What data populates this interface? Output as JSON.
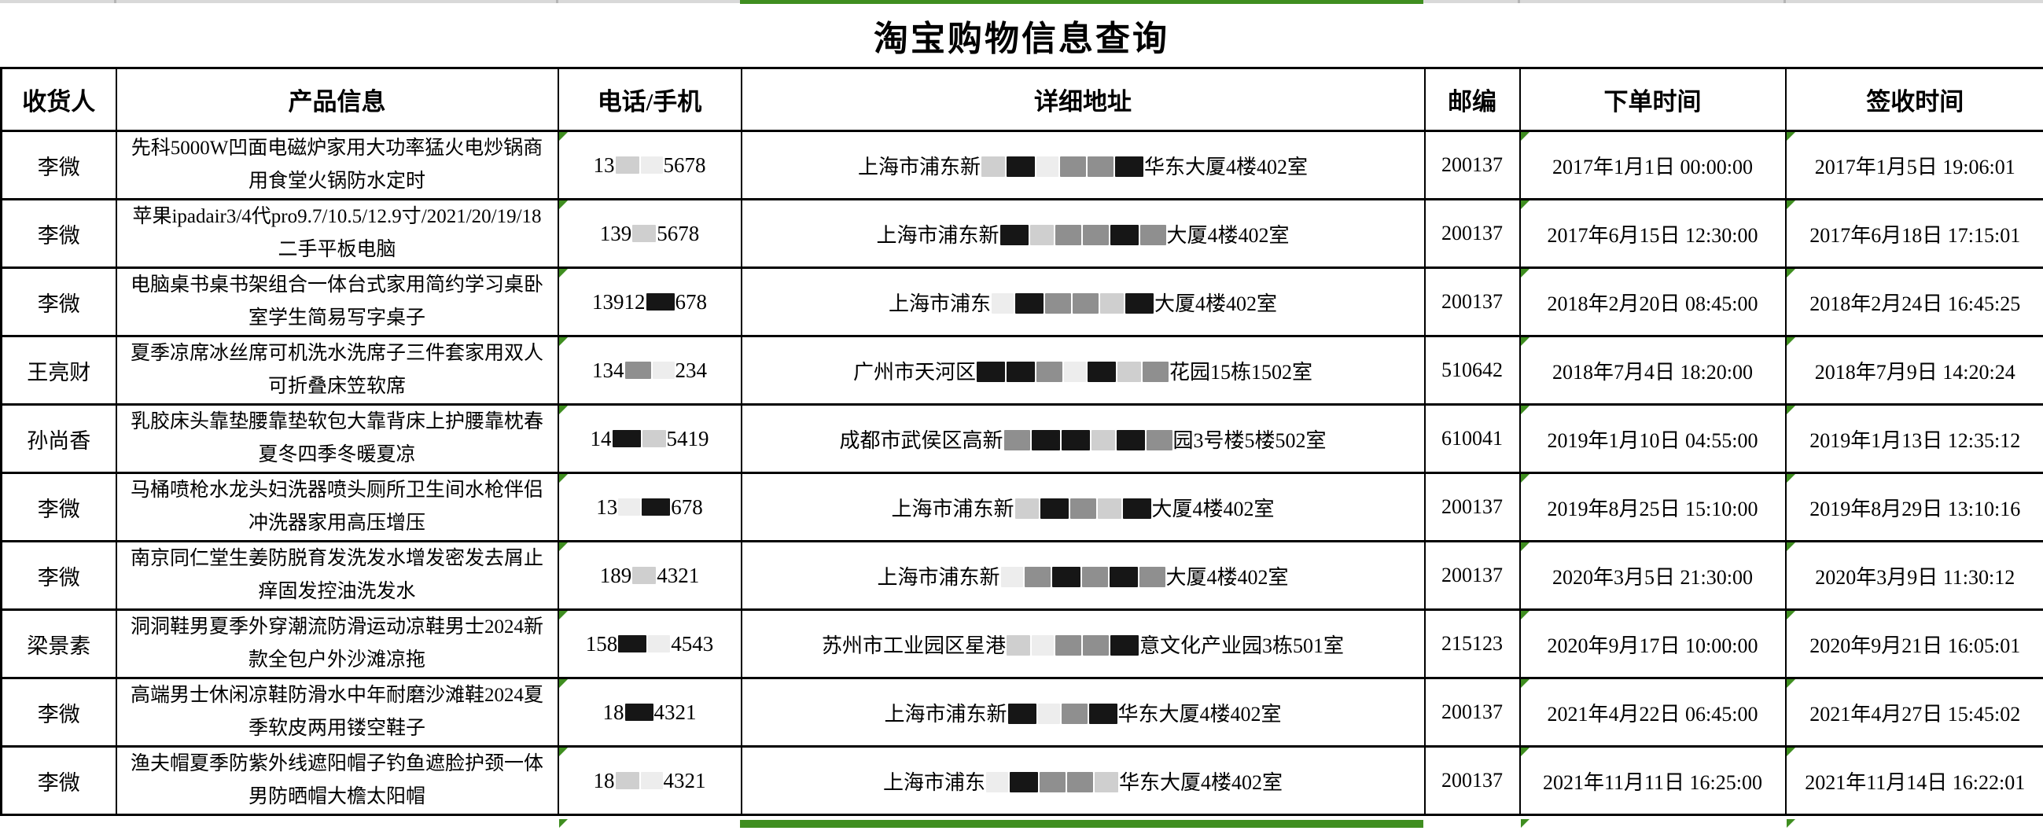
{
  "page": {
    "title": "淘宝购物信息查询"
  },
  "colors": {
    "selection_green": "#3f8e20",
    "grid_gray": "#d9d9d9"
  },
  "table": {
    "columns": [
      "收货人",
      "产品信息",
      "电话/手机",
      "详细地址",
      "邮编",
      "下单时间",
      "签收时间"
    ],
    "rows": [
      {
        "recipient": "李微",
        "product": "先科5000W凹面电磁炉家用大功率猛火电炒锅商用食堂火锅防水定时",
        "phone": {
          "prefix": "13",
          "masks": [
            "light",
            "faint"
          ],
          "suffix": "5678"
        },
        "address": {
          "prefix": "上海市浦东新",
          "masks": [
            "light",
            "dark",
            "faint",
            "mid",
            "mid",
            "dark"
          ],
          "suffix": "华东大厦4楼402室"
        },
        "zip": "200137",
        "order_time": "2017年1月1日 00:00:00",
        "sign_time": "2017年1月5日 19:06:01"
      },
      {
        "recipient": "李微",
        "product": "苹果ipadair3/4代pro9.7/10.5/12.9寸/2021/20/19/18二手平板电脑",
        "phone": {
          "prefix": "139",
          "masks": [
            "light"
          ],
          "suffix": "5678"
        },
        "address": {
          "prefix": "上海市浦东新",
          "masks": [
            "dark",
            "light",
            "mid",
            "mid",
            "dark",
            "mid"
          ],
          "suffix": "大厦4楼402室"
        },
        "zip": "200137",
        "order_time": "2017年6月15日 12:30:00",
        "sign_time": "2017年6月18日 17:15:01"
      },
      {
        "recipient": "李微",
        "product": "电脑桌书桌书架组合一体台式家用简约学习桌卧室学生简易写字桌子",
        "phone": {
          "prefix": "13912",
          "masks": [
            "dark"
          ],
          "suffix": "678"
        },
        "address": {
          "prefix": "上海市浦东",
          "masks": [
            "faint",
            "dark",
            "mid",
            "mid",
            "light",
            "dark"
          ],
          "suffix": "大厦4楼402室"
        },
        "zip": "200137",
        "order_time": "2018年2月20日 08:45:00",
        "sign_time": "2018年2月24日 16:45:25"
      },
      {
        "recipient": "王亮财",
        "product": "夏季凉席冰丝席可机洗水洗席子三件套家用双人可折叠床笠软席",
        "phone": {
          "prefix": "134",
          "masks": [
            "mid",
            "faint"
          ],
          "suffix": "234"
        },
        "address": {
          "prefix": "广州市天河区",
          "masks": [
            "dark",
            "dark",
            "mid",
            "faint",
            "dark",
            "light",
            "mid"
          ],
          "suffix": "花园15栋1502室"
        },
        "zip": "510642",
        "order_time": "2018年7月4日 18:20:00",
        "sign_time": "2018年7月9日 14:20:24"
      },
      {
        "recipient": "孙尚香",
        "product": "乳胶床头靠垫腰靠垫软包大靠背床上护腰靠枕春夏冬四季冬暖夏凉",
        "phone": {
          "prefix": "14",
          "masks": [
            "dark",
            "light"
          ],
          "suffix": "5419"
        },
        "address": {
          "prefix": "成都市武侯区高新",
          "masks": [
            "mid",
            "dark",
            "dark",
            "light",
            "dark",
            "mid"
          ],
          "suffix": "园3号楼5楼502室"
        },
        "zip": "610041",
        "order_time": "2019年1月10日 04:55:00",
        "sign_time": "2019年1月13日 12:35:12"
      },
      {
        "recipient": "李微",
        "product": "马桶喷枪水龙头妇洗器喷头厕所卫生间水枪伴侣冲洗器家用高压增压",
        "phone": {
          "prefix": "13",
          "masks": [
            "faint",
            "dark"
          ],
          "suffix": "678"
        },
        "address": {
          "prefix": "上海市浦东新",
          "masks": [
            "light",
            "dark",
            "mid",
            "light",
            "dark"
          ],
          "suffix": "大厦4楼402室"
        },
        "zip": "200137",
        "order_time": "2019年8月25日 15:10:00",
        "sign_time": "2019年8月29日 13:10:16"
      },
      {
        "recipient": "李微",
        "product": "南京同仁堂生姜防脱育发洗发水增发密发去屑止痒固发控油洗发水",
        "phone": {
          "prefix": "189",
          "masks": [
            "light"
          ],
          "suffix": "4321"
        },
        "address": {
          "prefix": "上海市浦东新",
          "masks": [
            "faint",
            "mid",
            "dark",
            "mid",
            "dark",
            "mid"
          ],
          "suffix": "大厦4楼402室"
        },
        "zip": "200137",
        "order_time": "2020年3月5日 21:30:00",
        "sign_time": "2020年3月9日 11:30:12"
      },
      {
        "recipient": "梁景素",
        "product": "洞洞鞋男夏季外穿潮流防滑运动凉鞋男士2024新款全包户外沙滩凉拖",
        "phone": {
          "prefix": "158",
          "masks": [
            "dark",
            "faint"
          ],
          "suffix": "4543"
        },
        "address": {
          "prefix": "苏州市工业园区星港",
          "masks": [
            "light",
            "faint",
            "mid",
            "mid",
            "dark"
          ],
          "suffix": "意文化产业园3栋501室"
        },
        "zip": "215123",
        "order_time": "2020年9月17日 10:00:00",
        "sign_time": "2020年9月21日 16:05:01"
      },
      {
        "recipient": "李微",
        "product": "高端男士休闲凉鞋防滑水中年耐磨沙滩鞋2024夏季软皮两用镂空鞋子",
        "phone": {
          "prefix": "18",
          "masks": [
            "dark"
          ],
          "suffix": "4321"
        },
        "address": {
          "prefix": "上海市浦东新",
          "masks": [
            "dark",
            "faint",
            "mid",
            "dark"
          ],
          "suffix": "华东大厦4楼402室"
        },
        "zip": "200137",
        "order_time": "2021年4月22日 06:45:00",
        "sign_time": "2021年4月27日 15:45:02"
      },
      {
        "recipient": "李微",
        "product": "渔夫帽夏季防紫外线遮阳帽子钓鱼遮脸护颈一体男防晒帽大檐太阳帽",
        "phone": {
          "prefix": "18",
          "masks": [
            "light",
            "faint"
          ],
          "suffix": "4321"
        },
        "address": {
          "prefix": "上海市浦东",
          "masks": [
            "faint",
            "dark",
            "mid",
            "mid",
            "light"
          ],
          "suffix": "华东大厦4楼402室"
        },
        "zip": "200137",
        "order_time": "2021年11月11日 16:25:00",
        "sign_time": "2021年11月14日 16:22:01"
      }
    ]
  }
}
